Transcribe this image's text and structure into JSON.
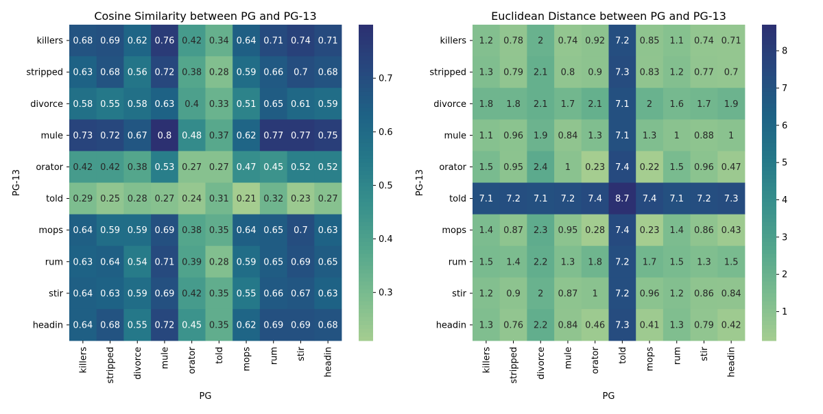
{
  "chart_data": [
    {
      "type": "heatmap",
      "title": "Cosine Similarity between PG and PG-13",
      "xlabel": "PG",
      "ylabel": "PG-13",
      "x_categories": [
        "killers",
        "stripped",
        "divorce",
        "mule",
        "orator",
        "told",
        "mops",
        "rum",
        "stir",
        "headin"
      ],
      "y_categories": [
        "killers",
        "stripped",
        "divorce",
        "mule",
        "orator",
        "told",
        "mops",
        "rum",
        "stir",
        "headin"
      ],
      "values": [
        [
          0.68,
          0.69,
          0.62,
          0.76,
          0.42,
          0.34,
          0.64,
          0.71,
          0.74,
          0.71
        ],
        [
          0.63,
          0.68,
          0.56,
          0.72,
          0.38,
          0.28,
          0.59,
          0.66,
          0.7,
          0.68
        ],
        [
          0.58,
          0.55,
          0.58,
          0.63,
          0.4,
          0.33,
          0.51,
          0.65,
          0.61,
          0.59
        ],
        [
          0.73,
          0.72,
          0.67,
          0.8,
          0.48,
          0.37,
          0.62,
          0.77,
          0.77,
          0.75
        ],
        [
          0.42,
          0.42,
          0.38,
          0.53,
          0.27,
          0.27,
          0.47,
          0.45,
          0.52,
          0.52
        ],
        [
          0.29,
          0.25,
          0.28,
          0.27,
          0.24,
          0.31,
          0.21,
          0.32,
          0.23,
          0.27
        ],
        [
          0.64,
          0.59,
          0.59,
          0.69,
          0.38,
          0.35,
          0.64,
          0.65,
          0.7,
          0.63
        ],
        [
          0.63,
          0.64,
          0.54,
          0.71,
          0.39,
          0.28,
          0.59,
          0.65,
          0.69,
          0.65
        ],
        [
          0.64,
          0.63,
          0.59,
          0.69,
          0.42,
          0.35,
          0.55,
          0.66,
          0.67,
          0.63
        ],
        [
          0.64,
          0.68,
          0.55,
          0.72,
          0.45,
          0.35,
          0.62,
          0.69,
          0.69,
          0.68
        ]
      ],
      "value_range": [
        0.21,
        0.8
      ],
      "colorbar_ticks": [
        0.3,
        0.4,
        0.5,
        0.6,
        0.7
      ],
      "colormap": "crest"
    },
    {
      "type": "heatmap",
      "title": "Euclidean Distance between PG and PG-13",
      "xlabel": "PG",
      "ylabel": "PG-13",
      "x_categories": [
        "killers",
        "stripped",
        "divorce",
        "mule",
        "orator",
        "told",
        "mops",
        "rum",
        "stir",
        "headin"
      ],
      "y_categories": [
        "killers",
        "stripped",
        "divorce",
        "mule",
        "orator",
        "told",
        "mops",
        "rum",
        "stir",
        "headin"
      ],
      "values": [
        [
          1.2,
          0.78,
          2,
          0.74,
          0.92,
          7.2,
          0.85,
          1.1,
          0.74,
          0.71
        ],
        [
          1.3,
          0.79,
          2.1,
          0.8,
          0.9,
          7.3,
          0.83,
          1.2,
          0.77,
          0.7
        ],
        [
          1.8,
          1.8,
          2.1,
          1.7,
          2.1,
          7.1,
          2,
          1.6,
          1.7,
          1.9
        ],
        [
          1.1,
          0.96,
          1.9,
          0.84,
          1.3,
          7.1,
          1.3,
          1,
          0.88,
          1
        ],
        [
          1.5,
          0.95,
          2.4,
          1,
          0.23,
          7.4,
          0.22,
          1.5,
          0.96,
          0.47
        ],
        [
          7.1,
          7.2,
          7.1,
          7.2,
          7.4,
          8.7,
          7.4,
          7.1,
          7.2,
          7.3
        ],
        [
          1.4,
          0.87,
          2.3,
          0.95,
          0.28,
          7.4,
          0.23,
          1.4,
          0.86,
          0.43
        ],
        [
          1.5,
          1.4,
          2.2,
          1.3,
          1.8,
          7.2,
          1.7,
          1.5,
          1.3,
          1.5
        ],
        [
          1.2,
          0.9,
          2,
          0.87,
          1,
          7.2,
          0.96,
          1.2,
          0.86,
          0.84
        ],
        [
          1.3,
          0.76,
          2.2,
          0.84,
          0.46,
          7.3,
          0.41,
          1.3,
          0.79,
          0.42
        ]
      ],
      "value_range": [
        0.22,
        8.7
      ],
      "colorbar_ticks": [
        1,
        2,
        3,
        4,
        5,
        6,
        7,
        8
      ],
      "colormap": "crest"
    }
  ]
}
